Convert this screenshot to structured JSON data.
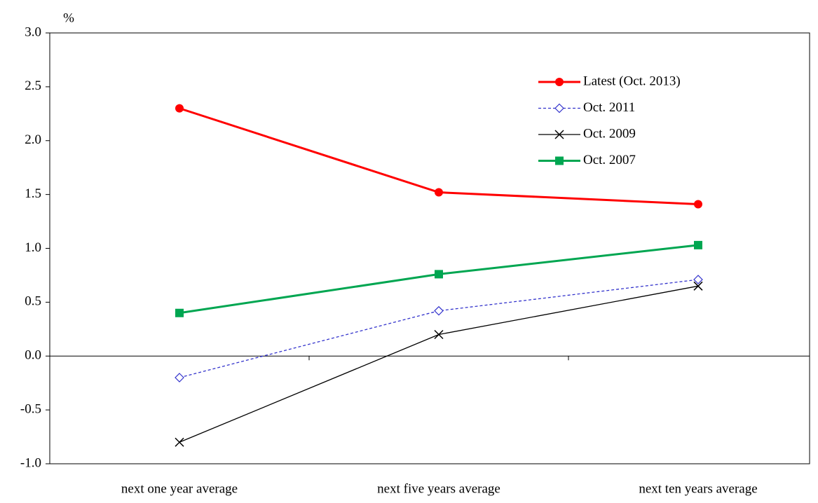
{
  "chart_data": {
    "type": "line",
    "y_label": "%",
    "categories": [
      "next one year average",
      "next five years average",
      "next ten years average"
    ],
    "series": [
      {
        "name": "Latest (Oct. 2013)",
        "color": "#ff0000",
        "marker": "circle",
        "dashed": false,
        "values": [
          2.3,
          1.52,
          1.41
        ]
      },
      {
        "name": "Oct. 2011",
        "color": "#3333cc",
        "marker": "diamond",
        "dashed": true,
        "values": [
          -0.2,
          0.42,
          0.71
        ]
      },
      {
        "name": "Oct. 2009",
        "color": "#000000",
        "marker": "x",
        "dashed": false,
        "values": [
          -0.8,
          0.2,
          0.65
        ]
      },
      {
        "name": "Oct. 2007",
        "color": "#00a651",
        "marker": "square",
        "dashed": false,
        "values": [
          0.4,
          0.76,
          1.03
        ]
      }
    ],
    "ylim": [
      -1.0,
      3.0
    ],
    "yticks": [
      {
        "value": -1.0,
        "label": "-1.0"
      },
      {
        "value": -0.5,
        "label": "-0.5"
      },
      {
        "value": 0.0,
        "label": "0.0"
      },
      {
        "value": 0.5,
        "label": "0.5"
      },
      {
        "value": 1.0,
        "label": "1.0"
      },
      {
        "value": 1.5,
        "label": "1.5"
      },
      {
        "value": 2.0,
        "label": "2.0"
      },
      {
        "value": 2.5,
        "label": "2.5"
      },
      {
        "value": 3.0,
        "label": "3.0"
      }
    ],
    "grid": false,
    "legend": "top-right"
  }
}
